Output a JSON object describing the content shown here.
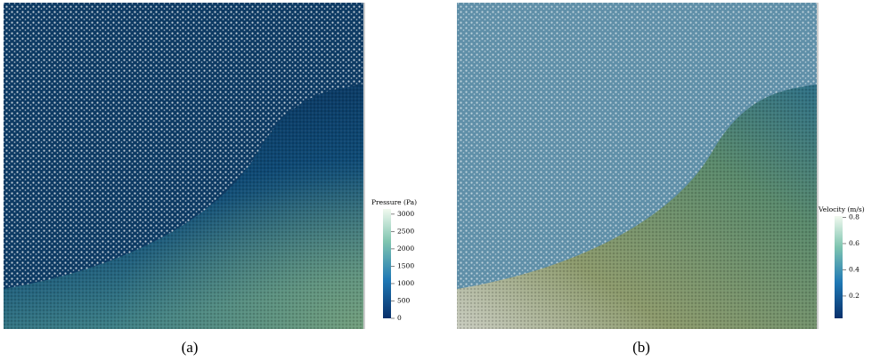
{
  "panels": [
    {
      "caption": "(a)",
      "colorbar": {
        "title": "Pressure (Pa)",
        "lim": [
          0,
          3150
        ],
        "ticks": [
          0,
          500,
          1000,
          1500,
          2000,
          2500,
          3000
        ]
      }
    },
    {
      "caption": "(b)",
      "colorbar": {
        "title": "Velocity (m/s)",
        "lim": [
          0.03,
          0.81
        ],
        "ticks": [
          0.2,
          0.4,
          0.6,
          0.8
        ]
      }
    }
  ]
}
